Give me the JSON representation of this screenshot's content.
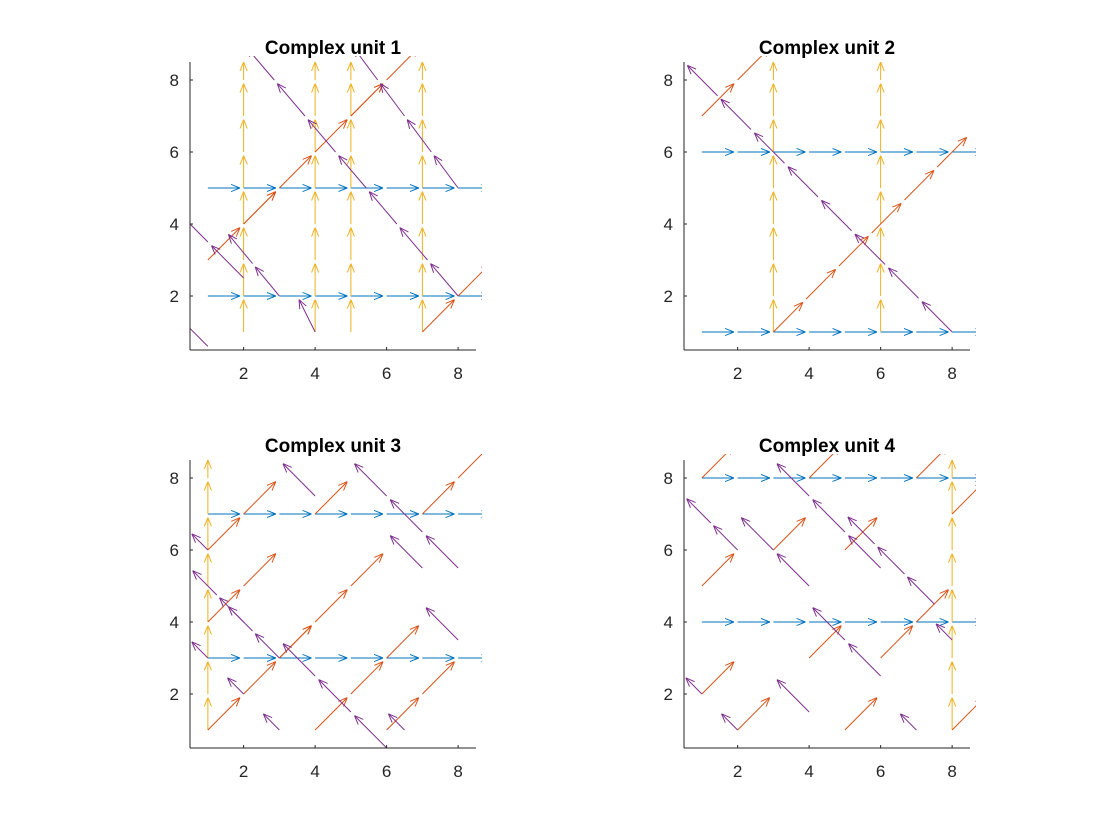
{
  "figure": {
    "background": "#ffffff"
  },
  "series_colors": {
    "horizontal": "#0072BD",
    "vertical": "#EDB120",
    "diagonal_up": "#D95319",
    "diagonal_down": "#7E2F8E"
  },
  "chart_data": [
    {
      "type": "quiver",
      "title": "Complex unit 1",
      "xlim": [
        0.5,
        8.5
      ],
      "ylim": [
        0.5,
        8.5
      ],
      "xticks": [
        2,
        4,
        6,
        8
      ],
      "yticks": [
        2,
        4,
        6,
        8
      ],
      "grid": false,
      "horizontal_rows": [
        2,
        5
      ],
      "vertical_cols": [
        2,
        4,
        5,
        7
      ],
      "vertical_y_start": 1,
      "up_segments": [
        [
          1,
          3,
          3,
          5
        ],
        [
          4,
          6,
          7,
          9
        ],
        [
          7,
          1,
          9,
          3
        ],
        [
          2,
          4,
          3,
          5
        ],
        [
          3,
          5,
          4,
          6
        ],
        [
          5,
          7,
          6,
          8
        ]
      ],
      "down_segments": [
        [
          0,
          4.5,
          2,
          2.5
        ],
        [
          0,
          1.6,
          1,
          0.6
        ],
        [
          1.5,
          3.8,
          3,
          2
        ],
        [
          2,
          9,
          8,
          2
        ],
        [
          5,
          9,
          8,
          5
        ],
        [
          3.5,
          2,
          4,
          1
        ]
      ]
    },
    {
      "type": "quiver",
      "title": "Complex unit 2",
      "xlim": [
        0.5,
        8.5
      ],
      "ylim": [
        0.5,
        8.5
      ],
      "xticks": [
        2,
        4,
        6,
        8
      ],
      "yticks": [
        2,
        4,
        6,
        8
      ],
      "grid": false,
      "horizontal_rows": [
        1,
        6
      ],
      "vertical_cols": [
        3,
        6
      ],
      "vertical_y_start": 1,
      "up_segments": [
        [
          3,
          1,
          8.5,
          6.5
        ],
        [
          1,
          7,
          3,
          9
        ]
      ],
      "down_segments": [
        [
          0.5,
          8.5,
          8,
          1
        ]
      ]
    },
    {
      "type": "quiver",
      "title": "Complex unit 3",
      "xlim": [
        0.5,
        8.5
      ],
      "ylim": [
        0.5,
        8.5
      ],
      "xticks": [
        2,
        4,
        6,
        8
      ],
      "yticks": [
        2,
        4,
        6,
        8
      ],
      "grid": false,
      "horizontal_rows": [
        3,
        7
      ],
      "vertical_cols": [
        1
      ],
      "vertical_y_start": 1,
      "up_segments": [
        [
          1,
          1,
          2,
          2
        ],
        [
          1,
          6,
          3,
          8
        ],
        [
          2,
          2,
          5,
          5
        ],
        [
          4,
          1,
          5,
          2
        ],
        [
          3,
          3,
          4,
          4
        ],
        [
          4,
          7,
          5,
          8
        ],
        [
          5,
          2,
          7,
          4
        ],
        [
          6,
          1,
          8,
          3
        ],
        [
          7,
          7,
          9,
          9
        ],
        [
          2,
          5,
          3,
          6
        ],
        [
          1,
          4,
          2,
          5
        ],
        [
          5,
          5,
          6,
          6
        ]
      ],
      "down_segments": [
        [
          0.5,
          6.5,
          1,
          6
        ],
        [
          0.5,
          5.5,
          2,
          4
        ],
        [
          0.5,
          3.5,
          1,
          3
        ],
        [
          1.5,
          4.5,
          3,
          3
        ],
        [
          3,
          8.5,
          4,
          7.5
        ],
        [
          5,
          8.5,
          8,
          5.5
        ],
        [
          1.5,
          2.5,
          2,
          2
        ],
        [
          2.5,
          1.5,
          3,
          1
        ],
        [
          3,
          3.5,
          5,
          1.5
        ],
        [
          5,
          1.5,
          6,
          0.5
        ],
        [
          6,
          1.5,
          6.5,
          1
        ],
        [
          6,
          6.5,
          7,
          5.5
        ],
        [
          7,
          4.5,
          8,
          3.5
        ]
      ]
    },
    {
      "type": "quiver",
      "title": "Complex unit 4",
      "xlim": [
        0.5,
        8.5
      ],
      "ylim": [
        0.5,
        8.5
      ],
      "xticks": [
        2,
        4,
        6,
        8
      ],
      "yticks": [
        2,
        4,
        6,
        8
      ],
      "grid": false,
      "horizontal_rows": [
        4,
        8
      ],
      "vertical_cols": [
        8
      ],
      "vertical_y_start": 1,
      "up_segments": [
        [
          1,
          2,
          2,
          3
        ],
        [
          1,
          5,
          2,
          6
        ],
        [
          1,
          8,
          2,
          9
        ],
        [
          2,
          1,
          3,
          2
        ],
        [
          3,
          6,
          4,
          7
        ],
        [
          4,
          3,
          5,
          4
        ],
        [
          4,
          8,
          5,
          9
        ],
        [
          5,
          1,
          6,
          2
        ],
        [
          5,
          6,
          6,
          7
        ],
        [
          6,
          3,
          8,
          5
        ],
        [
          7,
          8,
          8,
          9
        ],
        [
          8,
          1,
          9,
          2
        ],
        [
          8,
          7,
          9,
          8
        ]
      ],
      "down_segments": [
        [
          0.5,
          7.5,
          2,
          6
        ],
        [
          0.5,
          2.5,
          1,
          2
        ],
        [
          1.5,
          1.5,
          2,
          1
        ],
        [
          2,
          7,
          4,
          5
        ],
        [
          3,
          8.5,
          6,
          5.5
        ],
        [
          3,
          2.5,
          4,
          1.5
        ],
        [
          4,
          4.5,
          6,
          2.5
        ],
        [
          5,
          7,
          7.5,
          4.5
        ],
        [
          6.5,
          1.5,
          7,
          1
        ],
        [
          7.5,
          4,
          8,
          3.5
        ]
      ]
    }
  ]
}
